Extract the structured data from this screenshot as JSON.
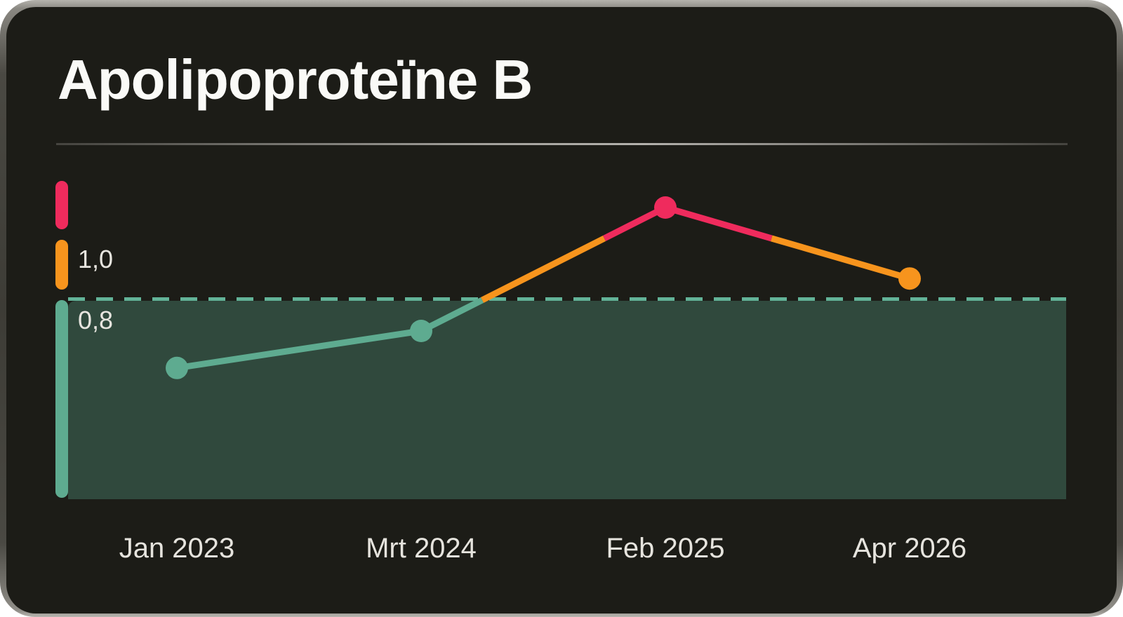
{
  "title": "Apolipoproteïne B",
  "chart_data": {
    "type": "line",
    "title": "Apolipoproteïne B",
    "x": [
      "Jan 2023",
      "Mrt 2024",
      "Feb 2025",
      "Apr 2026"
    ],
    "series": [
      {
        "name": "Apolipoproteïne B",
        "values": [
          0.58,
          0.7,
          1.1,
          0.87
        ]
      }
    ],
    "labels": {
      "upper": "1,0",
      "lower": "0,8"
    },
    "thresholds": {
      "upper": 1.0,
      "lower": 0.8
    },
    "ylim": [
      0.16,
      1.19
    ],
    "grid": false,
    "legend": false,
    "colors": {
      "high": "#EF2B5D",
      "borderline": "#F7941D",
      "normal": "#5EAB90",
      "normal_zone_fill": "#30493D",
      "dashed_line": "#62B398",
      "card_background": "#1C1C17",
      "title_text": "#FAFAF7",
      "tick_text": "#E7E5DF"
    }
  }
}
